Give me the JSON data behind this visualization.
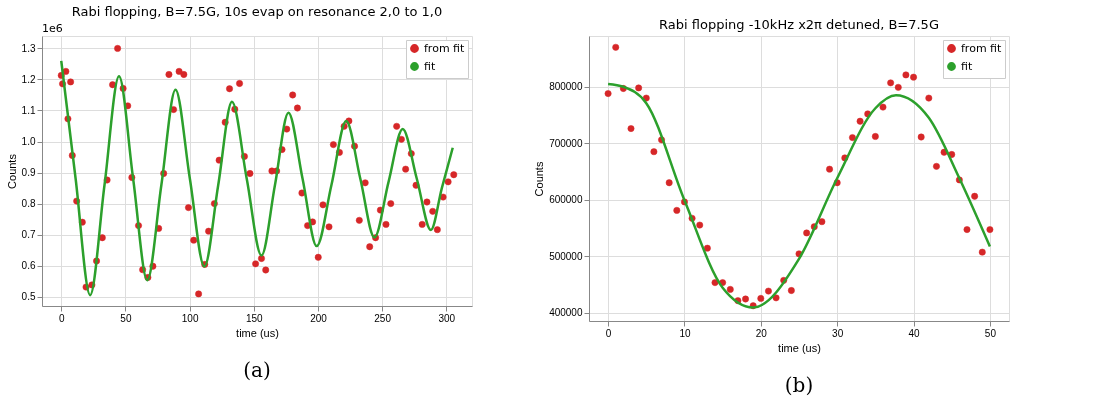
{
  "chart_data": [
    {
      "type": "line",
      "title": "Rabi flopping, B=7.5G, 10s evap on resonance 2,0 to 1,0",
      "xlabel": "time (us)",
      "ylabel": "Counts",
      "annotations": [
        "1e6",
        "(a)"
      ],
      "xlim": [
        -15,
        320
      ],
      "ylim": [
        0.47,
        1.34
      ],
      "xticks": [
        0,
        50,
        100,
        150,
        200,
        250,
        300
      ],
      "yticks": [
        0.5,
        0.6,
        0.7,
        0.8,
        0.9,
        {
          "value": 1,
          "label": "1.0"
        },
        1.1,
        1.2,
        1.3
      ],
      "grid": true,
      "legend": "top right",
      "series": [
        {
          "name": "from fit",
          "type": "scatter",
          "marker": "circle",
          "color": "#d62728",
          "x": [
            0,
            1,
            3.6,
            5.2,
            7.3,
            8.6,
            12,
            16.4,
            19.3,
            23.9,
            27.5,
            32,
            35.7,
            40,
            43.9,
            48.2,
            51.8,
            55,
            60.2,
            63.4,
            67.5,
            71.4,
            75.9,
            79.8,
            83.9,
            87.5,
            91.8,
            95.5,
            99.1,
            103.2,
            107,
            111.8,
            114.8,
            119.3,
            123,
            127.7,
            131.1,
            135.2,
            138.9,
            142.7,
            147,
            151.4,
            156,
            159.3,
            164.1,
            167.8,
            172,
            175.7,
            180.3,
            184,
            187.5,
            191.9,
            195.8,
            200.2,
            203.9,
            208.6,
            212,
            216.7,
            220.4,
            224.1,
            228.5,
            232.2,
            236.8,
            240.3,
            244.9,
            248.6,
            253,
            256.7,
            261.3,
            265,
            268.3,
            272.7,
            276.4,
            281.2,
            284.9,
            289.4,
            293,
            297.5,
            301.4,
            305.8
          ],
          "values": [
            1.213,
            1.186,
            1.226,
            1.073,
            1.192,
            0.955,
            0.808,
            0.74,
            0.531,
            0.538,
            0.615,
            0.69,
            0.876,
            1.183,
            1.3,
            1.171,
            1.115,
            0.884,
            0.729,
            0.587,
            0.562,
            0.598,
            0.72,
            0.897,
            1.216,
            1.103,
            1.226,
            1.216,
            0.787,
            0.682,
            0.509,
            0.604,
            0.711,
            0.8,
            0.94,
            1.062,
            1.17,
            1.104,
            1.187,
            0.952,
            0.897,
            0.606,
            0.623,
            0.586,
            0.905,
            0.905,
            0.974,
            1.04,
            1.15,
            1.108,
            0.834,
            0.729,
            0.741,
            0.627,
            0.796,
            0.725,
            0.99,
            0.965,
            1.049,
            1.066,
            0.985,
            0.746,
            0.867,
            0.661,
            0.69,
            0.779,
            0.733,
            0.8,
            1.049,
            1.007,
            0.911,
            0.961,
            0.859,
            0.733,
            0.805,
            0.775,
            0.716,
            0.821,
            0.87,
            0.893
          ]
        },
        {
          "name": "fit",
          "line_style": "solid",
          "color": "#2ca02c",
          "x": [
            0,
            11.2,
            22.5,
            33.7,
            45,
            56,
            67,
            78,
            89,
            100.2,
            111.5,
            122.3,
            133,
            144.5,
            156,
            166.5,
            177,
            188,
            199,
            210.5,
            222,
            233,
            244,
            255,
            266,
            277,
            288,
            296.5,
            305
          ],
          "values": [
            1.26,
            0.88,
            0.505,
            0.86,
            1.21,
            0.88,
            0.553,
            0.86,
            1.167,
            0.88,
            0.597,
            0.86,
            1.128,
            0.88,
            0.633,
            0.86,
            1.093,
            0.88,
            0.663,
            0.86,
            1.066,
            0.88,
            0.691,
            0.87,
            1.04,
            0.88,
            0.715,
            0.85,
            0.98
          ]
        }
      ]
    },
    {
      "type": "line",
      "title": "Rabi flopping -10kHz x2π detuned, B=7.5G",
      "xlabel": "time (us)",
      "ylabel": "Counts",
      "annotations": [
        "(b)"
      ],
      "xlim": [
        -2.5,
        52.5
      ],
      "ylim": [
        385000,
        890000
      ],
      "xticks": [
        0,
        10,
        20,
        30,
        40,
        50
      ],
      "yticks": [
        400000,
        500000,
        600000,
        700000,
        800000
      ],
      "grid": true,
      "legend": "top right",
      "series": [
        {
          "name": "from fit",
          "type": "scatter",
          "marker": "circle",
          "color": "#d62728",
          "x": [
            0,
            1,
            2,
            3,
            4,
            5,
            6,
            7,
            8,
            9,
            10,
            11,
            12,
            13,
            14,
            15,
            16,
            17,
            18,
            19,
            20,
            21,
            22,
            23,
            24,
            25,
            26,
            27,
            28,
            29,
            30,
            31,
            32,
            33,
            34,
            35,
            36,
            37,
            38,
            39,
            40,
            41,
            42,
            43,
            44,
            45,
            46,
            47,
            48,
            49,
            50
          ],
          "values": [
            788000,
            870000,
            797000,
            726000,
            798000,
            780000,
            685000,
            706000,
            630000,
            581000,
            596000,
            567000,
            555000,
            514000,
            453000,
            453000,
            441000,
            421000,
            424000,
            412000,
            425000,
            438000,
            426000,
            457000,
            439000,
            504000,
            541000,
            552000,
            561000,
            654000,
            630000,
            674000,
            710000,
            739000,
            752000,
            712000,
            764000,
            807000,
            799000,
            821000,
            817000,
            711000,
            780000,
            659000,
            684000,
            680000,
            635000,
            547000,
            606000,
            507000,
            547000
          ]
        },
        {
          "name": "fit",
          "line_style": "solid",
          "color": "#2ca02c",
          "x": [
            0,
            2,
            5,
            10,
            15,
            19,
            25,
            30,
            35,
            37.7,
            42,
            46,
            50
          ],
          "values": [
            805000,
            800000,
            771000,
            599000,
            444000,
            409000,
            495000,
            638000,
            762000,
            785000,
            745000,
            638000,
            517000
          ]
        }
      ]
    }
  ]
}
